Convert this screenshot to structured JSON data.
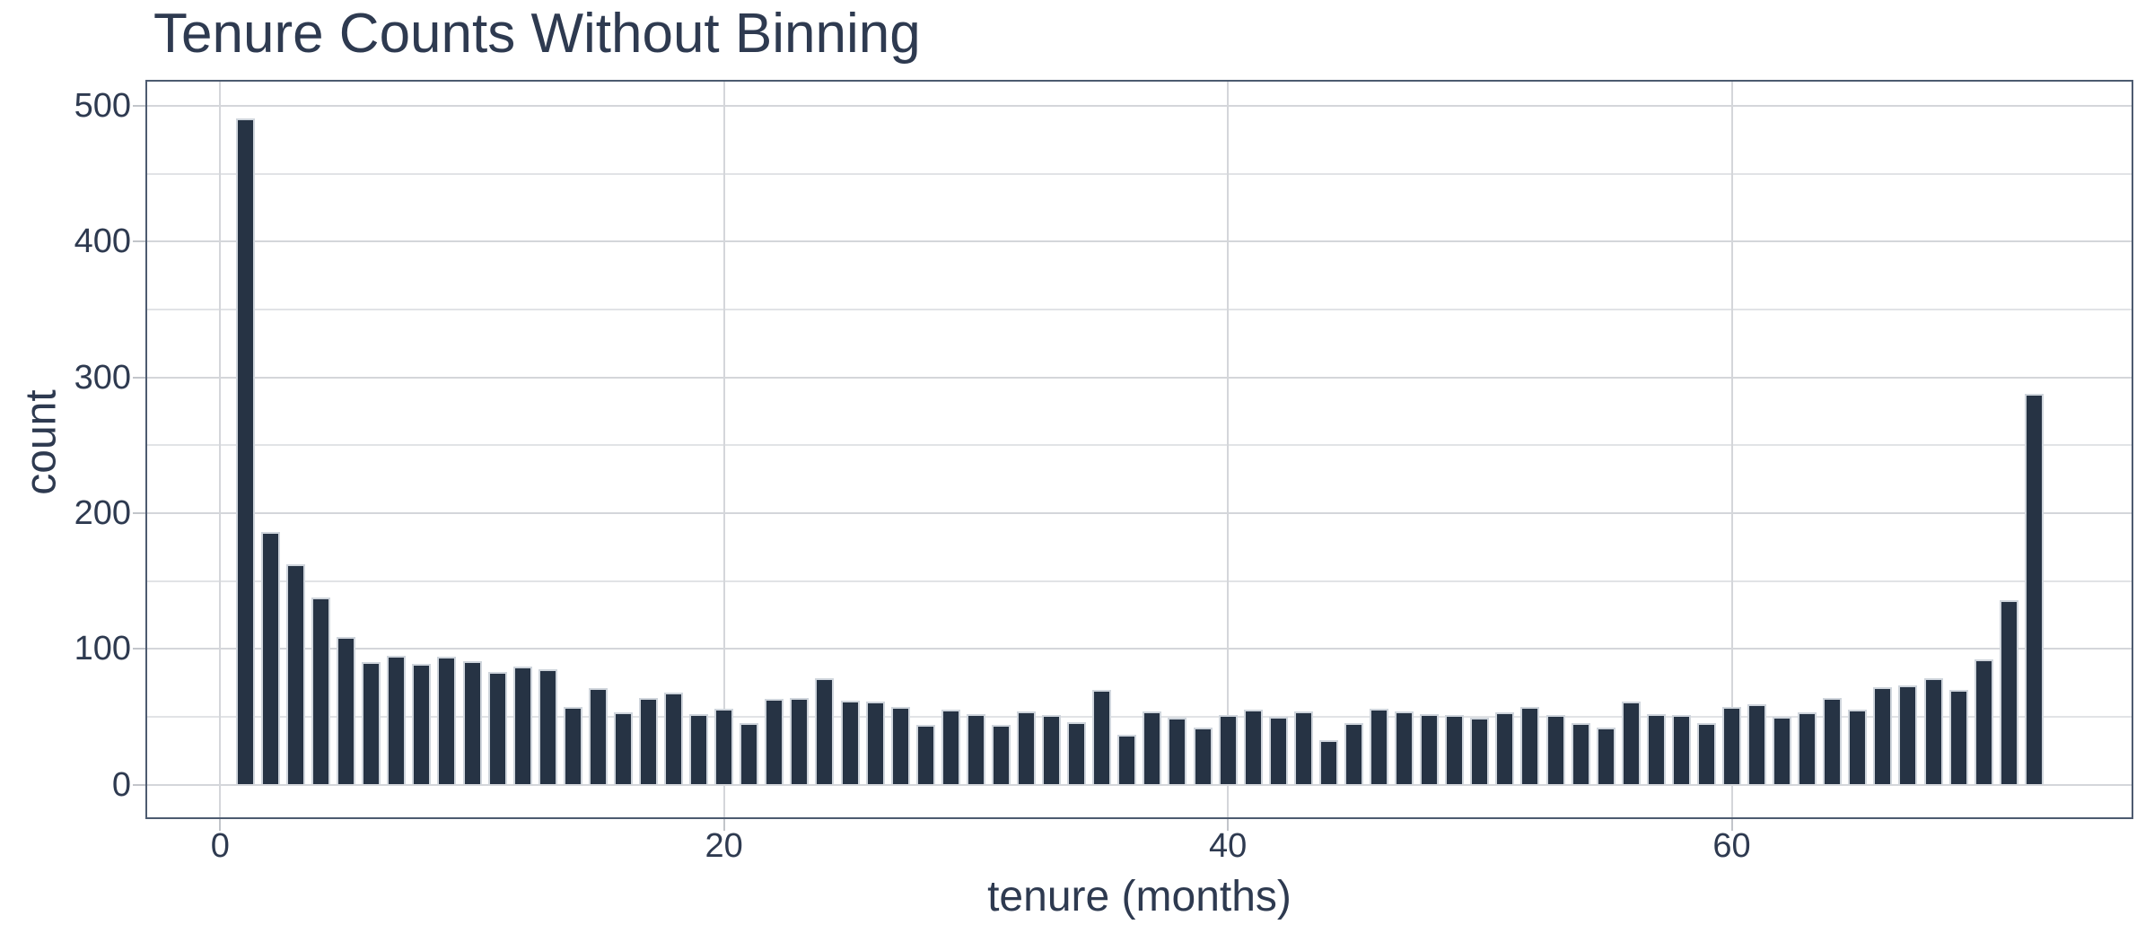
{
  "chart_data": {
    "type": "bar",
    "title": "Tenure Counts Without Binning",
    "xlabel": "tenure (months)",
    "ylabel": "count",
    "x": [
      1,
      2,
      3,
      4,
      5,
      6,
      7,
      8,
      9,
      10,
      11,
      12,
      13,
      14,
      15,
      16,
      17,
      18,
      19,
      20,
      21,
      22,
      23,
      24,
      25,
      26,
      27,
      28,
      29,
      30,
      31,
      32,
      33,
      34,
      35,
      36,
      37,
      38,
      39,
      40,
      41,
      42,
      43,
      44,
      45,
      46,
      47,
      48,
      49,
      50,
      51,
      52,
      53,
      54,
      55,
      56,
      57,
      58,
      59,
      60,
      61,
      62,
      63,
      64,
      65,
      66,
      67,
      68,
      69,
      70,
      71,
      72
    ],
    "values": [
      491,
      186,
      162,
      138,
      109,
      90,
      95,
      89,
      94,
      91,
      83,
      87,
      85,
      57,
      71,
      53,
      64,
      68,
      52,
      56,
      45,
      63,
      64,
      78,
      62,
      61,
      57,
      44,
      55,
      52,
      44,
      54,
      51,
      46,
      70,
      37,
      54,
      49,
      42,
      51,
      55,
      50,
      54,
      33,
      45,
      56,
      54,
      52,
      51,
      49,
      53,
      57,
      51,
      45,
      42,
      61,
      52,
      51,
      45,
      57,
      59,
      50,
      53,
      64,
      55,
      72,
      73,
      78,
      70,
      92,
      136,
      288
    ],
    "x_ticks": [
      0,
      20,
      40,
      60
    ],
    "y_ticks": [
      0,
      100,
      200,
      300,
      400,
      500
    ],
    "y_minor_step": 50,
    "ylim": [
      -25,
      519
    ],
    "xlim": [
      -3,
      76
    ],
    "grid": true,
    "legend": false,
    "colors": {
      "bar_fill": "#263344",
      "bar_edge": "#cfd5dc",
      "panel_border": "#4d5b70",
      "grid_major": "#d4d6da",
      "grid_minor": "#e1e3e6",
      "tick": "#c2c5ca",
      "text": "#2e3a50",
      "background": "#ffffff"
    }
  }
}
